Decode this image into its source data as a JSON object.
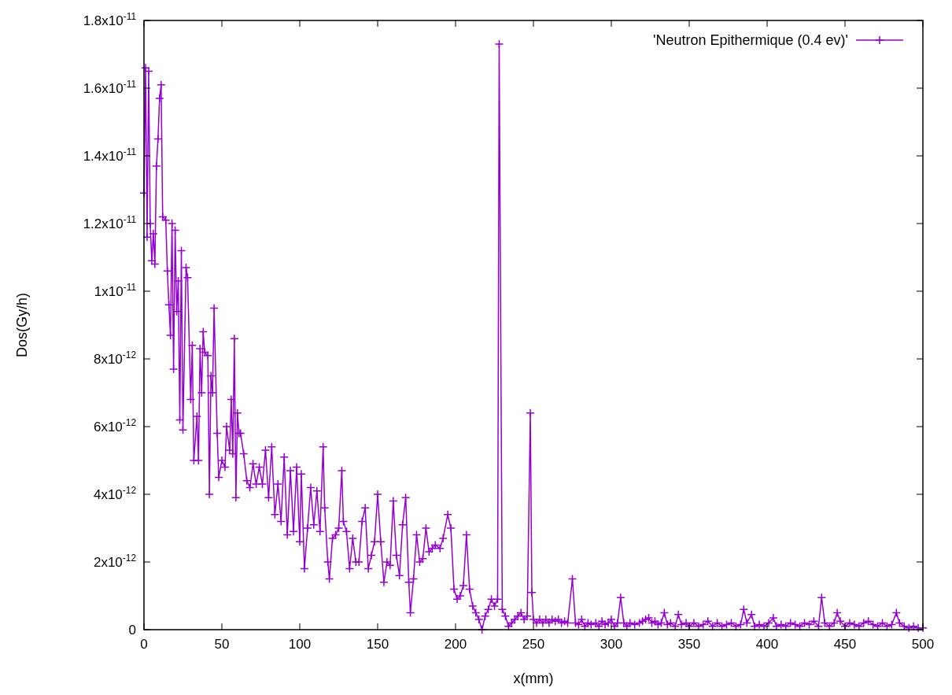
{
  "chart_data": {
    "type": "line",
    "xlabel": "x(mm)",
    "ylabel": "Dos(Gy/h)",
    "xlim": [
      0,
      500
    ],
    "xticks": [
      0,
      50,
      100,
      150,
      200,
      250,
      300,
      350,
      400,
      450,
      500
    ],
    "ylim": [
      0,
      1.8e-11
    ],
    "yticks": [
      {
        "value": 0,
        "label": "0"
      },
      {
        "value": 2e-12,
        "label": "2x10$^{-12}$"
      },
      {
        "value": 4e-12,
        "label": "4x10$^{-12}$"
      },
      {
        "value": 6e-12,
        "label": "6x10$^{-12}$"
      },
      {
        "value": 8e-12,
        "label": "8x10$^{-12}$"
      },
      {
        "value": 1e-11,
        "label": "1x10$^{-11}$"
      },
      {
        "value": 1.2e-11,
        "label": "1.2x10$^{-11}$"
      },
      {
        "value": 1.4e-11,
        "label": "1.4x10$^{-11}$"
      },
      {
        "value": 1.6e-11,
        "label": "1.6x10$^{-11}$"
      },
      {
        "value": 1.8e-11,
        "label": "1.8x10$^{-11}$"
      }
    ],
    "grid": false,
    "legend": "top right",
    "marker": "cross",
    "line_style": "solid",
    "series": [
      {
        "name": "'Neutron Epithermique (0.4 ev)'",
        "color": "#9400d3",
        "x": [
          0,
          1,
          2,
          3,
          4,
          5,
          6,
          7,
          8,
          9,
          10,
          11,
          12,
          14,
          15,
          16,
          17,
          18,
          19,
          20,
          21,
          22,
          23,
          24,
          25,
          27,
          28,
          30,
          31,
          32,
          34,
          35,
          36,
          37,
          38,
          39,
          41,
          42,
          43,
          44,
          45,
          47,
          48,
          50,
          52,
          53,
          55,
          56,
          57,
          58,
          59,
          60,
          61,
          62,
          64,
          66,
          68,
          70,
          72,
          74,
          76,
          78,
          80,
          82,
          84,
          86,
          88,
          90,
          92,
          94,
          96,
          98,
          100,
          101,
          103,
          105,
          107,
          109,
          111,
          113,
          115,
          116,
          118,
          119,
          121,
          123,
          125,
          127,
          128,
          130,
          132,
          134,
          136,
          138,
          140,
          142,
          144,
          146,
          148,
          150,
          152,
          154,
          156,
          158,
          160,
          162,
          164,
          166,
          168,
          170,
          171,
          173,
          175,
          177,
          179,
          181,
          183,
          185,
          187,
          190,
          192,
          195,
          197,
          199,
          201,
          203,
          205,
          207,
          209,
          211,
          213,
          215,
          217,
          219,
          221,
          223,
          225,
          227,
          228,
          230,
          232,
          234,
          236,
          238,
          240,
          242,
          244,
          246,
          248,
          249,
          250,
          252,
          254,
          256,
          258,
          260,
          262,
          264,
          266,
          268,
          270,
          272,
          275,
          277,
          279,
          281,
          283,
          285,
          287,
          290,
          292,
          294,
          296,
          298,
          300,
          302,
          304,
          306,
          308,
          310,
          312,
          315,
          318,
          320,
          322,
          324,
          326,
          328,
          330,
          332,
          334,
          336,
          338,
          341,
          343,
          345,
          348,
          350,
          353,
          356,
          359,
          362,
          365,
          368,
          371,
          374,
          377,
          380,
          383,
          385,
          387,
          390,
          392,
          395,
          398,
          401,
          404,
          406,
          409,
          412,
          415,
          418,
          421,
          424,
          427,
          430,
          433,
          435,
          437,
          440,
          443,
          445,
          447,
          450,
          453,
          456,
          459,
          462,
          465,
          468,
          471,
          474,
          477,
          480,
          483,
          485,
          488,
          491,
          494,
          497,
          500
        ],
        "values": [
          1.29e-11,
          1.66e-11,
          1.16e-11,
          1.65e-11,
          1.2e-11,
          1.09e-11,
          1.17e-11,
          1.08e-11,
          1.37e-11,
          1.45e-11,
          1.57e-11,
          1.61e-11,
          1.22e-11,
          1.21e-11,
          1.06e-11,
          9.6e-12,
          8.7e-12,
          1.2e-11,
          7.7e-12,
          1.18e-11,
          9.4e-12,
          1.03e-11,
          6.2e-12,
          1.12e-11,
          5.9e-12,
          1.07e-11,
          1.04e-11,
          6.8e-12,
          8.4e-12,
          5e-12,
          6.3e-12,
          5e-12,
          8.3e-12,
          7e-12,
          8.8e-12,
          8.2e-12,
          8.1e-12,
          4e-12,
          7.5e-12,
          7e-12,
          9.5e-12,
          5.8e-12,
          4.5e-12,
          5e-12,
          4.8e-12,
          6e-12,
          5.3e-12,
          6.8e-12,
          5.2e-12,
          8.6e-12,
          3.9e-12,
          6.4e-12,
          5.8e-12,
          5.8e-12,
          5.2e-12,
          4.4e-12,
          4.2e-12,
          4.9e-12,
          4.3e-12,
          4.8e-12,
          4.3e-12,
          5.3e-12,
          3.9e-12,
          5.4e-12,
          3.4e-12,
          4.3e-12,
          3.2e-12,
          5.1e-12,
          2.8e-12,
          4.7e-12,
          2.9e-12,
          4.8e-12,
          2.6e-12,
          4.6e-12,
          1.8e-12,
          3e-12,
          4.2e-12,
          3.1e-12,
          4.1e-12,
          2.9e-12,
          5.4e-12,
          3.6e-12,
          2e-12,
          1.5e-12,
          2.7e-12,
          2.8e-12,
          3e-12,
          4.7e-12,
          3.2e-12,
          2.9e-12,
          1.8e-12,
          2.7e-12,
          2e-12,
          2e-12,
          3.2e-12,
          3.6e-12,
          1.8e-12,
          2.2e-12,
          2.6e-12,
          4e-12,
          2.6e-12,
          1.4e-12,
          2e-12,
          1.9e-12,
          3.8e-12,
          2.2e-12,
          1.6e-12,
          3.1e-12,
          3.9e-12,
          1.4e-12,
          5e-13,
          1.5e-12,
          2.8e-12,
          2e-12,
          2.1e-12,
          3e-12,
          2.3e-12,
          2.4e-12,
          2.5e-12,
          2.4e-12,
          2.7e-12,
          3.4e-12,
          3e-12,
          1.2e-12,
          9e-13,
          1e-12,
          1.3e-12,
          2.8e-12,
          1.2e-12,
          7e-13,
          5e-13,
          3e-13,
          0,
          4e-13,
          6e-13,
          9e-13,
          7e-13,
          9e-13,
          1.73e-11,
          6e-13,
          4e-13,
          1e-13,
          2e-13,
          3e-13,
          4e-13,
          5e-13,
          3e-13,
          4e-13,
          6.4e-12,
          1.1e-12,
          3e-13,
          2e-13,
          3e-13,
          2e-13,
          3e-13,
          2e-13,
          3e-13,
          2.5e-13,
          3e-13,
          2e-13,
          2.5e-13,
          2e-13,
          1.5e-12,
          2e-13,
          1.5e-13,
          3e-13,
          1e-13,
          2e-13,
          1.5e-13,
          2e-13,
          1e-13,
          2.5e-13,
          1.5e-13,
          2e-13,
          3e-13,
          1e-13,
          2e-13,
          9.5e-13,
          2e-13,
          1e-13,
          2e-13,
          1.5e-13,
          2e-13,
          2.5e-13,
          3e-13,
          3.5e-13,
          2e-13,
          2.5e-13,
          1.5e-13,
          2e-13,
          5e-13,
          1.5e-13,
          2e-13,
          1e-13,
          4.5e-13,
          1.5e-13,
          2e-13,
          1e-13,
          2e-13,
          1e-13,
          1.5e-13,
          2.5e-13,
          1e-13,
          2e-13,
          1e-13,
          1.5e-13,
          2e-13,
          1e-13,
          1.5e-13,
          6e-13,
          2e-13,
          4.5e-13,
          1e-13,
          1.5e-13,
          1e-13,
          2e-13,
          3.5e-13,
          1e-13,
          1.5e-13,
          1e-13,
          2e-13,
          1.5e-13,
          1e-13,
          2e-13,
          1.5e-13,
          2.5e-13,
          1e-13,
          9.5e-13,
          2e-13,
          1e-13,
          2e-13,
          5e-13,
          2.5e-13,
          1e-13,
          2e-13,
          1.5e-13,
          1e-13,
          2e-13,
          2.5e-13,
          1.5e-13,
          1e-13,
          2e-13,
          1e-13,
          1.5e-13,
          5e-13,
          2e-13,
          1e-13,
          5e-14,
          1e-13,
          5e-14,
          5e-14
        ]
      }
    ]
  }
}
